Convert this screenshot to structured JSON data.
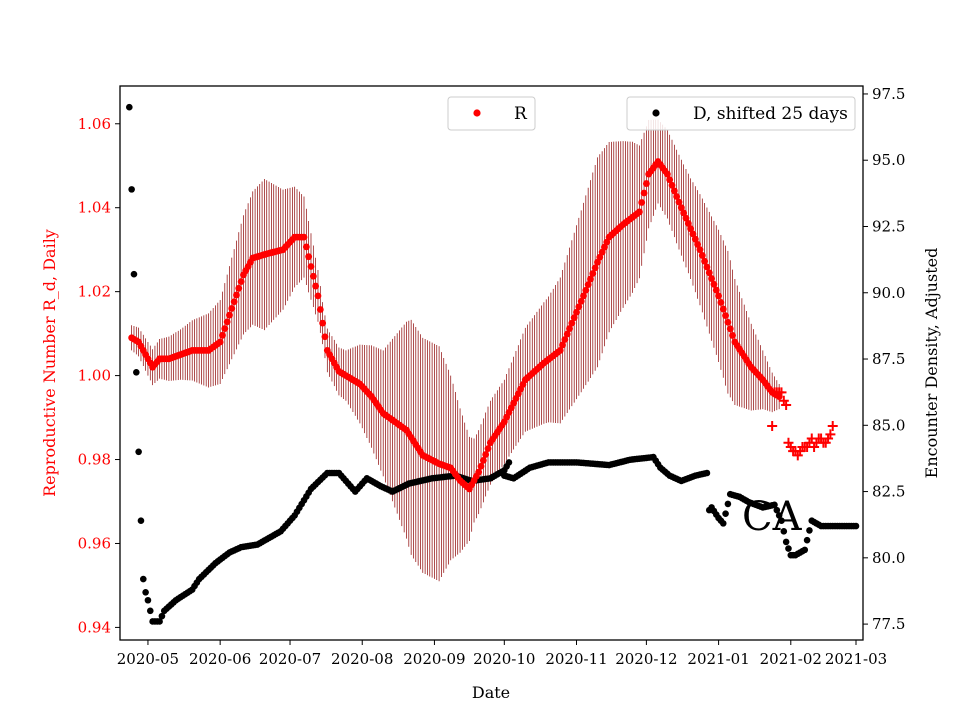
{
  "chart_data": {
    "type": "scatter",
    "title": "",
    "xlabel": "Date",
    "ylabel_left": "Reproductive Number R_d, Daily",
    "ylabel_right": "Encounter Density, Adjusted",
    "annotation": "CA",
    "x_ticks": [
      "2020-05",
      "2020-06",
      "2020-07",
      "2020-08",
      "2020-09",
      "2020-10",
      "2020-11",
      "2020-12",
      "2021-01",
      "2021-02",
      "2021-03"
    ],
    "x_range": [
      "2020-04-19",
      "2021-03-04"
    ],
    "y_left_ticks": [
      "0.94",
      "0.96",
      "0.98",
      "1.00",
      "1.02",
      "1.04",
      "1.06"
    ],
    "y_left_range": [
      0.937,
      1.069
    ],
    "y_right_ticks": [
      "77.5",
      "80.0",
      "82.5",
      "85.0",
      "87.5",
      "90.0",
      "92.5",
      "95.0",
      "97.5"
    ],
    "y_right_range": [
      76.9,
      97.8
    ],
    "colors": {
      "R": "#ff0000",
      "R_band": "#8b0000",
      "D": "#000000",
      "left_axis": "#ff0000"
    },
    "legend": {
      "r": {
        "label": "R",
        "placement": "top-center"
      },
      "d": {
        "label": "D, shifted 25 days",
        "placement": "top-right"
      }
    },
    "r_keyframes": [
      [
        "2020-04-24",
        1.009
      ],
      [
        "2020-04-27",
        1.008
      ],
      [
        "2020-04-30",
        1.005
      ],
      [
        "2020-05-03",
        1.002
      ],
      [
        "2020-05-06",
        1.004
      ],
      [
        "2020-05-10",
        1.004
      ],
      [
        "2020-05-20",
        1.006
      ],
      [
        "2020-05-27",
        1.006
      ],
      [
        "2020-06-01",
        1.008
      ],
      [
        "2020-06-06",
        1.016
      ],
      [
        "2020-06-11",
        1.024
      ],
      [
        "2020-06-15",
        1.028
      ],
      [
        "2020-06-21",
        1.029
      ],
      [
        "2020-06-28",
        1.03
      ],
      [
        "2020-07-03",
        1.033
      ],
      [
        "2020-07-07",
        1.033
      ],
      [
        "2020-07-10",
        1.026
      ],
      [
        "2020-07-13",
        1.019
      ],
      [
        "2020-07-17",
        1.006
      ],
      [
        "2020-07-22",
        1.001
      ],
      [
        "2020-07-31",
        0.998
      ],
      [
        "2020-08-05",
        0.995
      ],
      [
        "2020-08-10",
        0.991
      ],
      [
        "2020-08-20",
        0.987
      ],
      [
        "2020-08-27",
        0.981
      ],
      [
        "2020-09-03",
        0.979
      ],
      [
        "2020-09-08",
        0.978
      ],
      [
        "2020-09-12",
        0.975
      ],
      [
        "2020-09-16",
        0.973
      ],
      [
        "2020-09-20",
        0.977
      ],
      [
        "2020-09-25",
        0.984
      ],
      [
        "2020-10-01",
        0.989
      ],
      [
        "2020-10-10",
        0.999
      ],
      [
        "2020-10-18",
        1.003
      ],
      [
        "2020-10-25",
        1.006
      ],
      [
        "2020-11-04",
        1.019
      ],
      [
        "2020-11-10",
        1.027
      ],
      [
        "2020-11-15",
        1.033
      ],
      [
        "2020-11-21",
        1.036
      ],
      [
        "2020-11-28",
        1.039
      ],
      [
        "2020-12-02",
        1.048
      ],
      [
        "2020-12-06",
        1.051
      ],
      [
        "2020-12-10",
        1.048
      ],
      [
        "2020-12-16",
        1.04
      ],
      [
        "2020-12-24",
        1.03
      ],
      [
        "2021-01-01",
        1.019
      ],
      [
        "2021-01-08",
        1.008
      ],
      [
        "2021-01-15",
        1.002
      ],
      [
        "2021-01-20",
        0.999
      ],
      [
        "2021-01-24",
        0.996
      ],
      [
        "2021-01-27",
        0.995
      ]
    ],
    "r_band_keyframes": [
      [
        "2020-04-24",
        0.003
      ],
      [
        "2020-05-15",
        0.006
      ],
      [
        "2020-06-01",
        0.01
      ],
      [
        "2020-06-20",
        0.018
      ],
      [
        "2020-07-03",
        0.012
      ],
      [
        "2020-07-15",
        0.005
      ],
      [
        "2020-07-25",
        0.006
      ],
      [
        "2020-08-10",
        0.015
      ],
      [
        "2020-08-22",
        0.028
      ],
      [
        "2020-09-03",
        0.028
      ],
      [
        "2020-09-18",
        0.01
      ],
      [
        "2020-10-01",
        0.01
      ],
      [
        "2020-10-20",
        0.015
      ],
      [
        "2020-11-10",
        0.025
      ],
      [
        "2020-11-25",
        0.018
      ],
      [
        "2020-12-06",
        0.01
      ],
      [
        "2020-12-20",
        0.012
      ],
      [
        "2021-01-05",
        0.017
      ],
      [
        "2021-01-20",
        0.007
      ],
      [
        "2021-01-27",
        0.003
      ]
    ],
    "r_forecast": [
      [
        "2021-01-25",
        0.996
      ],
      [
        "2021-01-26",
        0.996
      ],
      [
        "2021-01-27",
        0.996
      ],
      [
        "2021-01-28",
        0.996
      ],
      [
        "2021-01-29",
        0.994
      ],
      [
        "2021-01-30",
        0.993
      ],
      [
        "2021-01-24",
        0.988
      ],
      [
        "2021-01-31",
        0.984
      ],
      [
        "2021-02-01",
        0.983
      ],
      [
        "2021-02-02",
        0.982
      ],
      [
        "2021-02-03",
        0.982
      ],
      [
        "2021-02-04",
        0.981
      ],
      [
        "2021-02-05",
        0.982
      ],
      [
        "2021-02-06",
        0.983
      ],
      [
        "2021-02-07",
        0.983
      ],
      [
        "2021-02-08",
        0.983
      ],
      [
        "2021-02-09",
        0.984
      ],
      [
        "2021-02-10",
        0.985
      ],
      [
        "2021-02-11",
        0.983
      ],
      [
        "2021-02-12",
        0.984
      ],
      [
        "2021-02-13",
        0.985
      ],
      [
        "2021-02-14",
        0.985
      ],
      [
        "2021-02-15",
        0.984
      ],
      [
        "2021-02-16",
        0.984
      ],
      [
        "2021-02-17",
        0.985
      ],
      [
        "2021-02-18",
        0.986
      ],
      [
        "2021-02-19",
        0.988
      ]
    ],
    "d_keyframes": [
      [
        "2020-04-23",
        97.0
      ],
      [
        "2020-04-24",
        93.9
      ],
      [
        "2020-04-25",
        90.7
      ],
      [
        "2020-04-26",
        87.0
      ],
      [
        "2020-04-27",
        84.0
      ],
      [
        "2020-04-28",
        81.4
      ],
      [
        "2020-04-29",
        79.2
      ],
      [
        "2020-04-30",
        78.7
      ],
      [
        "2020-05-01",
        78.4
      ],
      [
        "2020-05-02",
        78.0
      ],
      [
        "2020-05-03",
        77.6
      ],
      [
        "2020-05-06",
        77.6
      ],
      [
        "2020-05-08",
        78.0
      ],
      [
        "2020-05-13",
        78.4
      ],
      [
        "2020-05-20",
        78.8
      ],
      [
        "2020-05-23",
        79.2
      ],
      [
        "2020-05-30",
        79.8
      ],
      [
        "2020-06-05",
        80.2
      ],
      [
        "2020-06-10",
        80.4
      ],
      [
        "2020-06-17",
        80.5
      ],
      [
        "2020-06-27",
        81.0
      ],
      [
        "2020-07-03",
        81.6
      ],
      [
        "2020-07-10",
        82.6
      ],
      [
        "2020-07-17",
        83.2
      ],
      [
        "2020-07-22",
        83.2
      ],
      [
        "2020-07-29",
        82.5
      ],
      [
        "2020-08-03",
        83.0
      ],
      [
        "2020-08-09",
        82.7
      ],
      [
        "2020-08-14",
        82.5
      ],
      [
        "2020-08-21",
        82.8
      ],
      [
        "2020-08-31",
        83.0
      ],
      [
        "2020-09-10",
        83.1
      ],
      [
        "2020-09-17",
        82.9
      ],
      [
        "2020-09-25",
        83.0
      ],
      [
        "2020-10-01",
        83.3
      ],
      [
        "2020-10-03",
        83.6
      ]
    ],
    "d_keyframes_b": [
      [
        "2020-10-01",
        83.1
      ],
      [
        "2020-10-05",
        83.0
      ],
      [
        "2020-10-12",
        83.4
      ],
      [
        "2020-10-20",
        83.6
      ],
      [
        "2020-11-01",
        83.6
      ],
      [
        "2020-11-15",
        83.5
      ],
      [
        "2020-11-24",
        83.7
      ],
      [
        "2020-12-04",
        83.8
      ],
      [
        "2020-12-07",
        83.4
      ],
      [
        "2020-12-11",
        83.1
      ],
      [
        "2020-12-16",
        82.9
      ],
      [
        "2020-12-22",
        83.1
      ],
      [
        "2020-12-27",
        83.2
      ]
    ],
    "d_keyframes_c": [
      [
        "2020-12-28",
        81.8
      ],
      [
        "2020-12-29",
        81.9
      ],
      [
        "2021-01-01",
        81.5
      ],
      [
        "2021-01-03",
        81.3
      ],
      [
        "2021-01-06",
        82.4
      ],
      [
        "2021-01-10",
        82.3
      ],
      [
        "2021-01-14",
        82.1
      ],
      [
        "2021-01-20",
        81.9
      ],
      [
        "2021-01-25",
        82.0
      ],
      [
        "2021-01-28",
        81.4
      ],
      [
        "2021-01-30",
        80.6
      ],
      [
        "2021-02-01",
        80.1
      ],
      [
        "2021-02-03",
        80.1
      ],
      [
        "2021-02-07",
        80.3
      ],
      [
        "2021-02-10",
        81.4
      ],
      [
        "2021-02-14",
        81.2
      ],
      [
        "2021-03-01",
        81.2
      ]
    ]
  }
}
